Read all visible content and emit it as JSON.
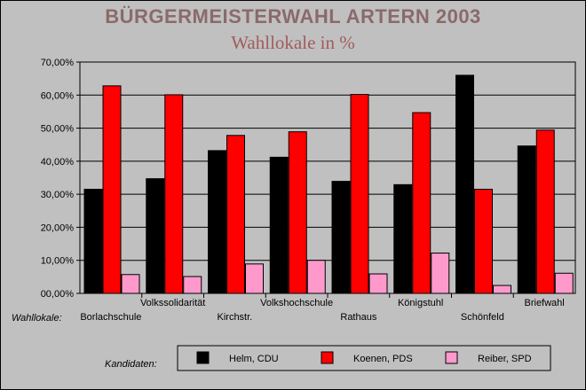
{
  "chart_data": {
    "type": "bar",
    "title": "BÜRGERMEISTERWAHL ARTERN 2003",
    "subtitle": "Wahllokale in %",
    "xlabel": "Wahllokale:",
    "legend_title": "Kandidaten:",
    "ylim": [
      0,
      70
    ],
    "yticks": [
      "00,00%",
      "10,00%",
      "20,00%",
      "30,00%",
      "40,00%",
      "50,00%",
      "60,00%",
      "70,00%"
    ],
    "categories": [
      "Borlachschule",
      "Volkssolidarität",
      "Kirchstr.",
      "Volkshochschule",
      "Rathaus",
      "Königstuhl",
      "Schönfeld",
      "Briefwahl"
    ],
    "series": [
      {
        "name": "Helm, CDU",
        "color": "#000000",
        "values": [
          31.5,
          34.7,
          43.2,
          41.2,
          33.9,
          32.9,
          66.0,
          44.6
        ]
      },
      {
        "name": "Koenen, PDS",
        "color": "#ff0000",
        "values": [
          62.8,
          60.1,
          47.8,
          48.9,
          60.2,
          54.7,
          31.5,
          49.4
        ]
      },
      {
        "name": "Reiber, SPD",
        "color": "#ff99cc",
        "values": [
          5.7,
          5.1,
          8.9,
          10.0,
          5.9,
          12.2,
          2.4,
          6.1
        ]
      }
    ]
  }
}
